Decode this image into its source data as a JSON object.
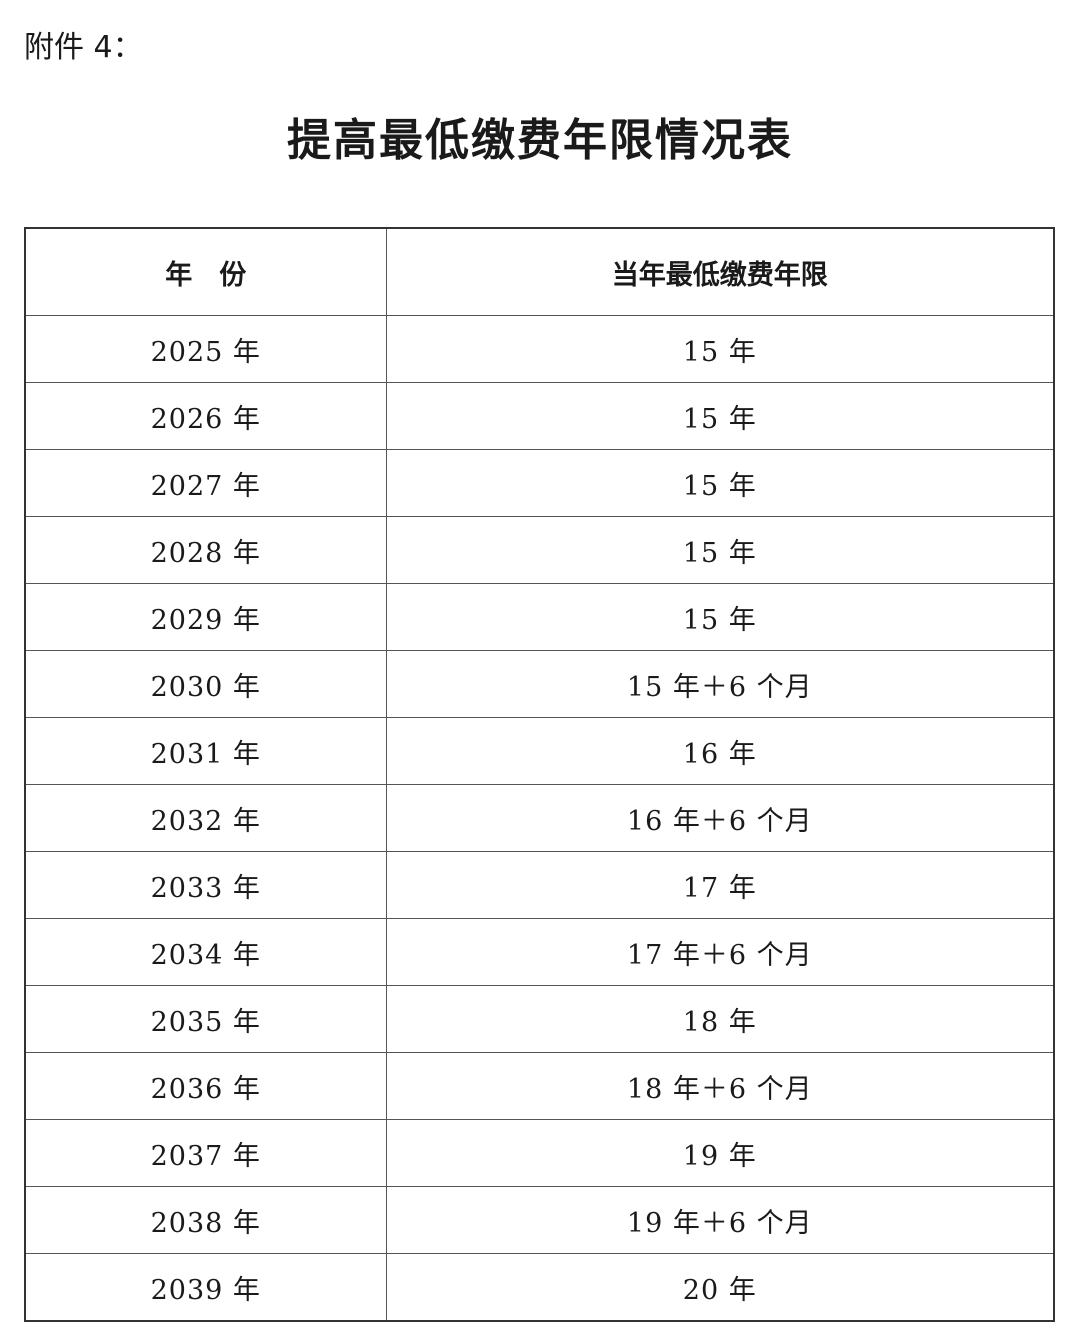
{
  "attachment_label": "附件 4：",
  "title": "提高最低缴费年限情况表",
  "table": {
    "headers": [
      "年　份",
      "当年最低缴费年限"
    ],
    "rows": [
      [
        "2025 年",
        "15 年"
      ],
      [
        "2026 年",
        "15 年"
      ],
      [
        "2027 年",
        "15 年"
      ],
      [
        "2028 年",
        "15 年"
      ],
      [
        "2029 年",
        "15 年"
      ],
      [
        "2030 年",
        "15 年＋6 个月"
      ],
      [
        "2031 年",
        "16 年"
      ],
      [
        "2032 年",
        "16 年＋6 个月"
      ],
      [
        "2033 年",
        "17 年"
      ],
      [
        "2034 年",
        "17 年＋6 个月"
      ],
      [
        "2035 年",
        "18 年"
      ],
      [
        "2036 年",
        "18 年＋6 个月"
      ],
      [
        "2037 年",
        "19 年"
      ],
      [
        "2038 年",
        "19 年＋6 个月"
      ],
      [
        "2039 年",
        "20 年"
      ]
    ]
  }
}
